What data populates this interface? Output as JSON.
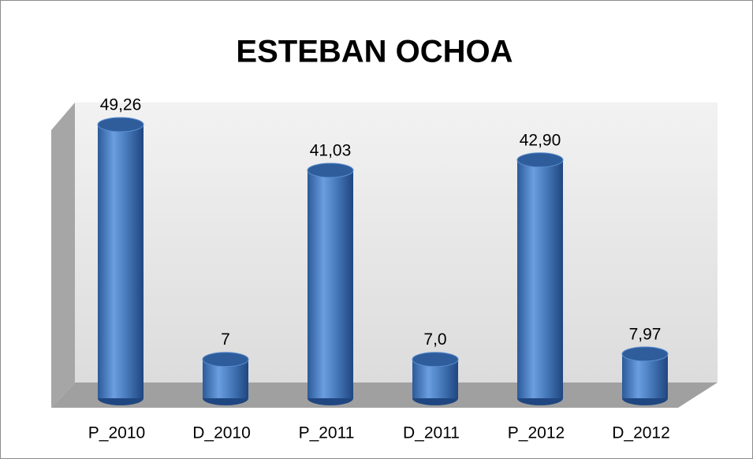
{
  "chart_data": {
    "type": "bar",
    "title": "ESTEBAN OCHOA",
    "categories": [
      "P_2010",
      "D_2010",
      "P_2011",
      "D_2011",
      "P_2012",
      "D_2012"
    ],
    "values": [
      49.26,
      7,
      41.03,
      7.0,
      42.9,
      7.97
    ],
    "value_labels": [
      "49,26",
      "7",
      "41,03",
      "7,0",
      "42,90",
      "7,97"
    ],
    "color": "#4a7ebf"
  }
}
